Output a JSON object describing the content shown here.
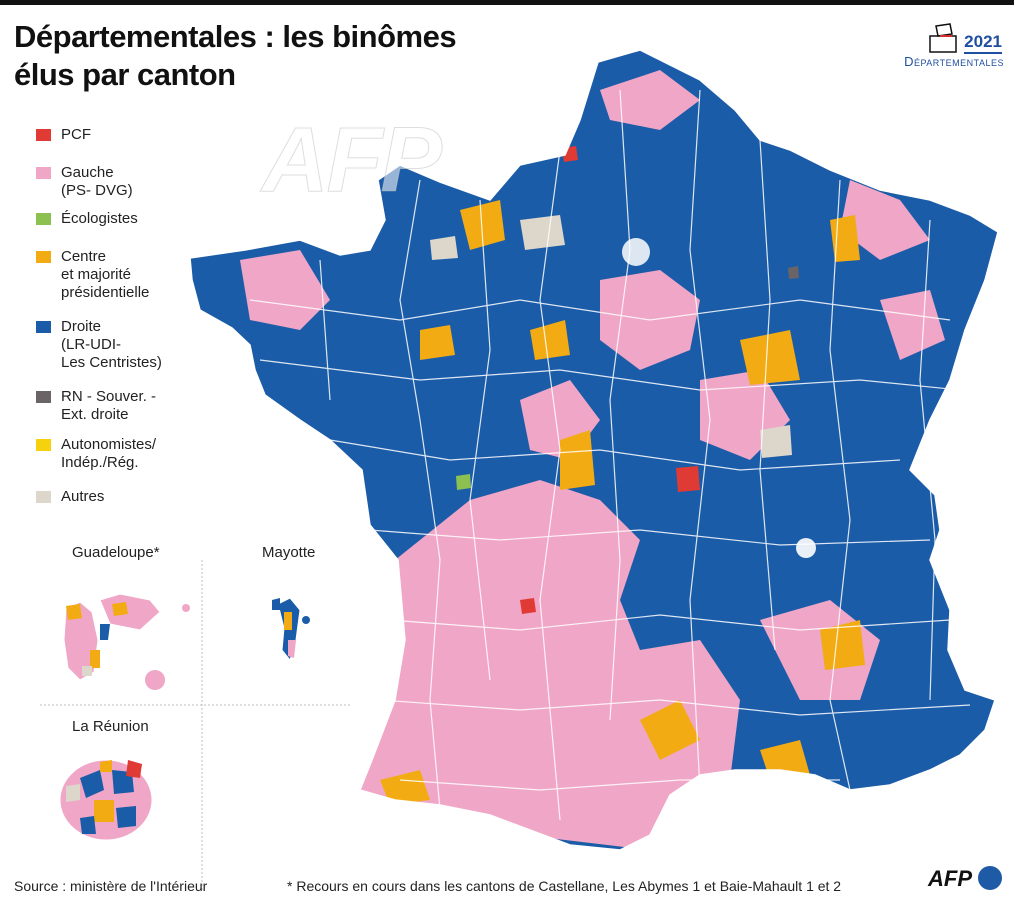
{
  "title": {
    "line1": "Départementales : les binômes",
    "line2": "élus par canton"
  },
  "badge": {
    "year": "2021",
    "label": "Départementales"
  },
  "watermark": "AFP",
  "legend": [
    {
      "label": "PCF",
      "color": "#e03a35"
    },
    {
      "label": "Gauche\n(PS- DVG)",
      "color": "#f0a6c6"
    },
    {
      "label": "Écologistes",
      "color": "#8cc152"
    },
    {
      "label": "Centre\net majorité\nprésidentielle",
      "color": "#f2ab13"
    },
    {
      "label": "Droite\n(LR-UDI-\nLes Centristes)",
      "color": "#1b5ca8"
    },
    {
      "label": "RN - Souver. -\nExt. droite",
      "color": "#6b6466"
    },
    {
      "label": "Autonomistes/\nIndép./Rég.",
      "color": "#f5d20d"
    },
    {
      "label": "Autres",
      "color": "#dcd6cb"
    }
  ],
  "insets": {
    "guadeloupe": "Guadeloupe*",
    "mayotte": "Mayotte",
    "reunion": "La Réunion"
  },
  "source": "Source : ministère de l'Intérieur",
  "footnote": "* Recours en cours dans les cantons de Castellane, Les Abymes 1 et Baie-Mahault 1 et 2",
  "credit": "AFP",
  "colors": {
    "pcf": "#e03a35",
    "gauche": "#f0a6c6",
    "ecolo": "#8cc152",
    "centre": "#f2ab13",
    "droite": "#1b5ca8",
    "rn": "#6b6466",
    "regio": "#f5d20d",
    "autres": "#dcd6cb"
  }
}
